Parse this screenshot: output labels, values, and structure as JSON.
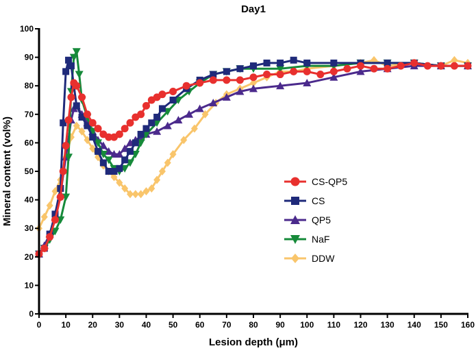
{
  "chart_data": {
    "type": "line",
    "title": "Day1",
    "xlabel": "Lesion depth (μm)",
    "ylabel": "Mineral content (vol%)",
    "xlim": [
      0,
      160
    ],
    "ylim": [
      0,
      100
    ],
    "xticks": [
      0,
      10,
      20,
      30,
      40,
      50,
      60,
      70,
      80,
      90,
      100,
      110,
      120,
      130,
      140,
      150,
      160
    ],
    "yticks": [
      0,
      10,
      20,
      30,
      40,
      50,
      60,
      70,
      80,
      90,
      100
    ],
    "grid": false,
    "legend_position": "center-right",
    "series": [
      {
        "name": "DDW",
        "color": "#F9C56B",
        "marker": "diamond",
        "x": [
          0,
          2,
          4,
          6,
          8,
          10,
          12,
          14,
          16,
          18,
          20,
          22,
          24,
          26,
          28,
          30,
          32,
          34,
          36,
          38,
          40,
          42,
          44,
          46,
          48,
          50,
          54,
          58,
          62,
          66,
          70,
          75,
          80,
          85,
          90,
          95,
          100,
          110,
          120,
          125,
          130,
          140,
          150,
          155,
          160
        ],
        "y": [
          30,
          34,
          38,
          43,
          47,
          55,
          62,
          66,
          64,
          61,
          58,
          55,
          52,
          50,
          48,
          46,
          44,
          42,
          42,
          42,
          43,
          44,
          47,
          50,
          53,
          56,
          61,
          65,
          70,
          74,
          77,
          79,
          81,
          83,
          85,
          85,
          86,
          87,
          88,
          89,
          87,
          88,
          87,
          89,
          88
        ]
      },
      {
        "name": "QP5",
        "color": "#4B2A8C",
        "marker": "triangle-up",
        "x": [
          0,
          2,
          4,
          6,
          8,
          10,
          12,
          13,
          14,
          16,
          18,
          20,
          22,
          24,
          26,
          28,
          30,
          32,
          34,
          36,
          38,
          40,
          44,
          48,
          52,
          56,
          60,
          65,
          70,
          75,
          80,
          90,
          100,
          110,
          120,
          130,
          140,
          150,
          160
        ],
        "y": [
          21,
          24,
          28,
          34,
          42,
          55,
          68,
          72,
          73,
          70,
          67,
          64,
          61,
          59,
          57,
          56,
          56,
          58,
          60,
          61,
          62,
          63,
          64,
          66,
          68,
          70,
          72,
          74,
          76,
          78,
          79,
          80,
          81,
          83,
          85,
          86,
          87,
          87,
          87
        ]
      },
      {
        "name": "NaF",
        "color": "#168A3A",
        "marker": "triangle-down",
        "x": [
          0,
          2,
          4,
          6,
          8,
          10,
          11,
          12,
          13,
          14,
          15,
          16,
          18,
          20,
          22,
          24,
          26,
          28,
          30,
          32,
          34,
          36,
          38,
          40,
          44,
          48,
          52,
          56,
          60,
          65,
          70,
          75,
          80,
          90,
          100,
          110,
          120,
          130,
          140,
          150,
          160
        ],
        "y": [
          21,
          23,
          26,
          29,
          33,
          41,
          55,
          78,
          90,
          92,
          84,
          75,
          69,
          64,
          60,
          56,
          54,
          51,
          50,
          51,
          53,
          56,
          60,
          63,
          67,
          71,
          75,
          78,
          81,
          84,
          85,
          86,
          86,
          86,
          87,
          87,
          88,
          88,
          88,
          87,
          87
        ]
      },
      {
        "name": "CS",
        "color": "#1F2A7A",
        "marker": "square",
        "x": [
          0,
          2,
          4,
          6,
          8,
          9,
          10,
          11,
          12,
          13,
          14,
          16,
          18,
          20,
          22,
          24,
          26,
          28,
          30,
          32,
          34,
          36,
          38,
          40,
          42,
          44,
          46,
          50,
          55,
          60,
          65,
          70,
          75,
          80,
          85,
          90,
          95,
          100,
          110,
          120,
          130,
          140,
          150,
          160
        ],
        "y": [
          21,
          23,
          28,
          35,
          44,
          67,
          85,
          89,
          87,
          80,
          73,
          69,
          66,
          62,
          57,
          53,
          50,
          50,
          51,
          54,
          57,
          60,
          63,
          65,
          67,
          69,
          72,
          75,
          79,
          82,
          84,
          85,
          86,
          87,
          88,
          88,
          89,
          88,
          88,
          88,
          88,
          88,
          87,
          87
        ]
      },
      {
        "name": "CS-QP5",
        "color": "#E8302E",
        "marker": "circle",
        "x": [
          0,
          2,
          4,
          6,
          8,
          9,
          10,
          11,
          12,
          13,
          14,
          16,
          18,
          20,
          22,
          24,
          26,
          28,
          30,
          32,
          34,
          36,
          38,
          40,
          42,
          44,
          46,
          50,
          55,
          60,
          65,
          70,
          75,
          80,
          85,
          90,
          95,
          100,
          105,
          110,
          115,
          120,
          125,
          130,
          135,
          140,
          145,
          150,
          155,
          160
        ],
        "y": [
          21,
          23,
          27,
          33,
          41,
          50,
          59,
          68,
          76,
          81,
          80,
          76,
          70,
          67,
          65,
          63,
          62,
          62,
          63,
          65,
          67,
          69,
          70,
          73,
          75,
          76,
          77,
          78,
          80,
          81,
          82,
          82,
          82,
          83,
          84,
          84,
          85,
          85,
          84,
          85,
          86,
          87,
          86,
          86,
          87,
          88,
          87,
          87,
          87,
          87
        ]
      }
    ],
    "legend_order": [
      "CS-QP5",
      "CS",
      "QP5",
      "NaF",
      "DDW"
    ]
  }
}
